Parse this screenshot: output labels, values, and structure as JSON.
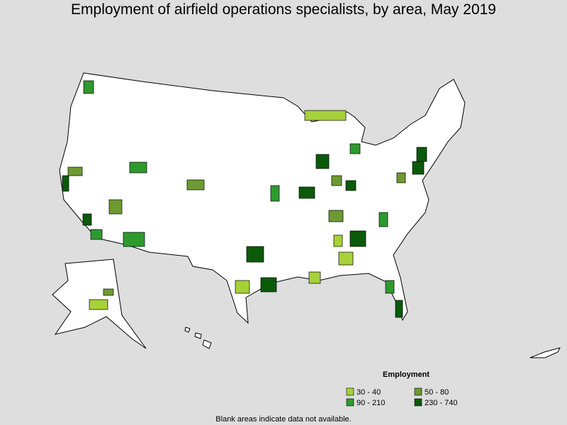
{
  "title": "Employment of airfield operations specialists, by area, May 2019",
  "legend": {
    "title": "Employment",
    "items": [
      {
        "label": "30 - 40",
        "color": "#a6d13a"
      },
      {
        "label": "50 - 80",
        "color": "#6e9a32"
      },
      {
        "label": "90 - 210",
        "color": "#2e9a2e"
      },
      {
        "label": "230 - 740",
        "color": "#0a5a0a"
      }
    ]
  },
  "note": "Blank areas indicate data not available."
}
